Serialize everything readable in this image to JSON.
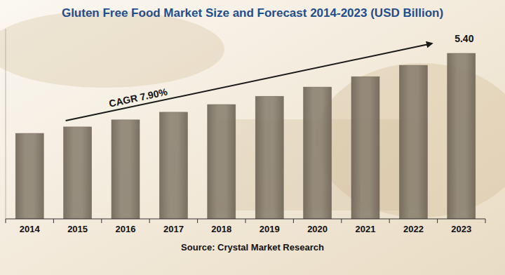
{
  "chart_data": {
    "type": "bar",
    "title": "Gluten Free Food Market Size and Forecast 2014-2023 (USD Billion)",
    "categories": [
      "2014",
      "2015",
      "2016",
      "2017",
      "2018",
      "2019",
      "2020",
      "2021",
      "2022",
      "2023"
    ],
    "values": [
      2.79,
      3.0,
      3.23,
      3.48,
      3.73,
      4.0,
      4.3,
      4.64,
      5.01,
      5.4
    ],
    "value_labels": [
      null,
      null,
      null,
      null,
      null,
      null,
      null,
      null,
      null,
      "5.40"
    ],
    "data_labels": true,
    "color": "#8a8070",
    "annotation": "CAGR 7.90%",
    "source": "Source: Crystal Market Research",
    "ylim": [
      0,
      6.2
    ],
    "yticks": [],
    "tick_labels": "x",
    "grid": false
  }
}
